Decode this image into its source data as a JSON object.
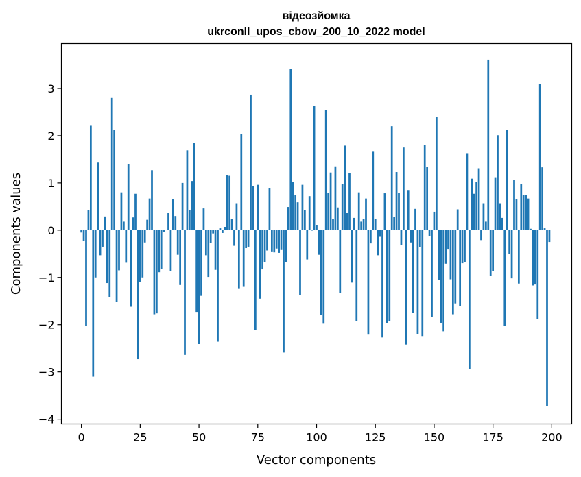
{
  "chart_data": {
    "type": "bar",
    "title_line1": "відеозйомка",
    "title_line2": "ukrconll_upos_cbow_200_10_2022 model",
    "xlabel": "Vector components",
    "ylabel": "Components values",
    "xlim": [
      -8.5,
      208.5
    ],
    "ylim": [
      -4.1,
      3.95
    ],
    "xticks": [
      0,
      25,
      50,
      75,
      100,
      125,
      150,
      175,
      200
    ],
    "yticks": [
      -4,
      -3,
      -2,
      -1,
      0,
      1,
      2,
      3
    ],
    "bar_color": "#1f77b4",
    "grid": false,
    "values": [
      -0.05,
      -0.22,
      -2.03,
      0.43,
      2.21,
      -3.1,
      -1.0,
      1.43,
      -0.53,
      -0.35,
      0.29,
      -1.12,
      -1.41,
      2.8,
      2.12,
      -1.52,
      -0.85,
      0.8,
      0.18,
      -0.69,
      1.4,
      -1.62,
      0.27,
      0.77,
      -2.73,
      -1.09,
      -1.0,
      -0.26,
      0.22,
      0.67,
      1.27,
      -1.78,
      -1.76,
      -0.89,
      -0.82,
      -0.04,
      0.0,
      0.36,
      -0.86,
      0.65,
      0.3,
      -0.52,
      -1.16,
      1.0,
      -2.64,
      1.69,
      0.42,
      1.04,
      1.85,
      -1.73,
      -2.41,
      -1.39,
      0.46,
      -0.53,
      -0.99,
      -0.27,
      -0.07,
      -0.84,
      -2.36,
      0.04,
      -0.06,
      0.07,
      1.16,
      1.15,
      0.23,
      -0.33,
      0.57,
      -1.23,
      2.04,
      -1.2,
      -0.38,
      -0.35,
      2.87,
      0.93,
      -2.11,
      0.96,
      -1.45,
      -0.83,
      -0.67,
      -0.43,
      0.89,
      -0.45,
      -0.47,
      -0.39,
      -0.48,
      -0.42,
      -2.59,
      -0.67,
      0.49,
      3.41,
      1.02,
      0.75,
      0.59,
      -1.38,
      0.96,
      0.42,
      -0.62,
      0.72,
      -0.01,
      2.63,
      0.1,
      -0.52,
      -1.8,
      -1.98,
      2.55,
      0.79,
      1.22,
      0.24,
      1.35,
      0.48,
      -1.33,
      0.97,
      1.79,
      0.36,
      1.21,
      -1.11,
      0.26,
      -1.92,
      0.8,
      0.18,
      0.23,
      0.67,
      -2.21,
      -0.28,
      1.66,
      0.24,
      -0.53,
      -0.14,
      -2.27,
      0.78,
      -1.97,
      -1.92,
      2.2,
      0.28,
      1.23,
      0.79,
      -0.32,
      1.75,
      -2.42,
      0.85,
      -0.26,
      -1.75,
      0.45,
      -2.2,
      -0.36,
      -2.24,
      1.81,
      1.34,
      -0.12,
      -1.83,
      0.39,
      2.4,
      -1.05,
      -1.96,
      -2.14,
      -0.71,
      -0.41,
      -1.04,
      -1.78,
      -1.55,
      0.44,
      -1.6,
      -0.7,
      -0.68,
      1.63,
      -2.94,
      1.09,
      0.77,
      1.02,
      1.31,
      -0.21,
      0.57,
      0.18,
      3.61,
      -0.96,
      -0.86,
      1.12,
      2.01,
      0.57,
      0.26,
      -2.03,
      2.12,
      -0.51,
      -1.02,
      1.07,
      0.65,
      -1.13,
      0.98,
      0.74,
      0.75,
      0.67,
      0.03,
      -1.17,
      -1.15,
      -1.88,
      3.1,
      1.33,
      0.04,
      -3.72,
      -0.25
    ]
  }
}
